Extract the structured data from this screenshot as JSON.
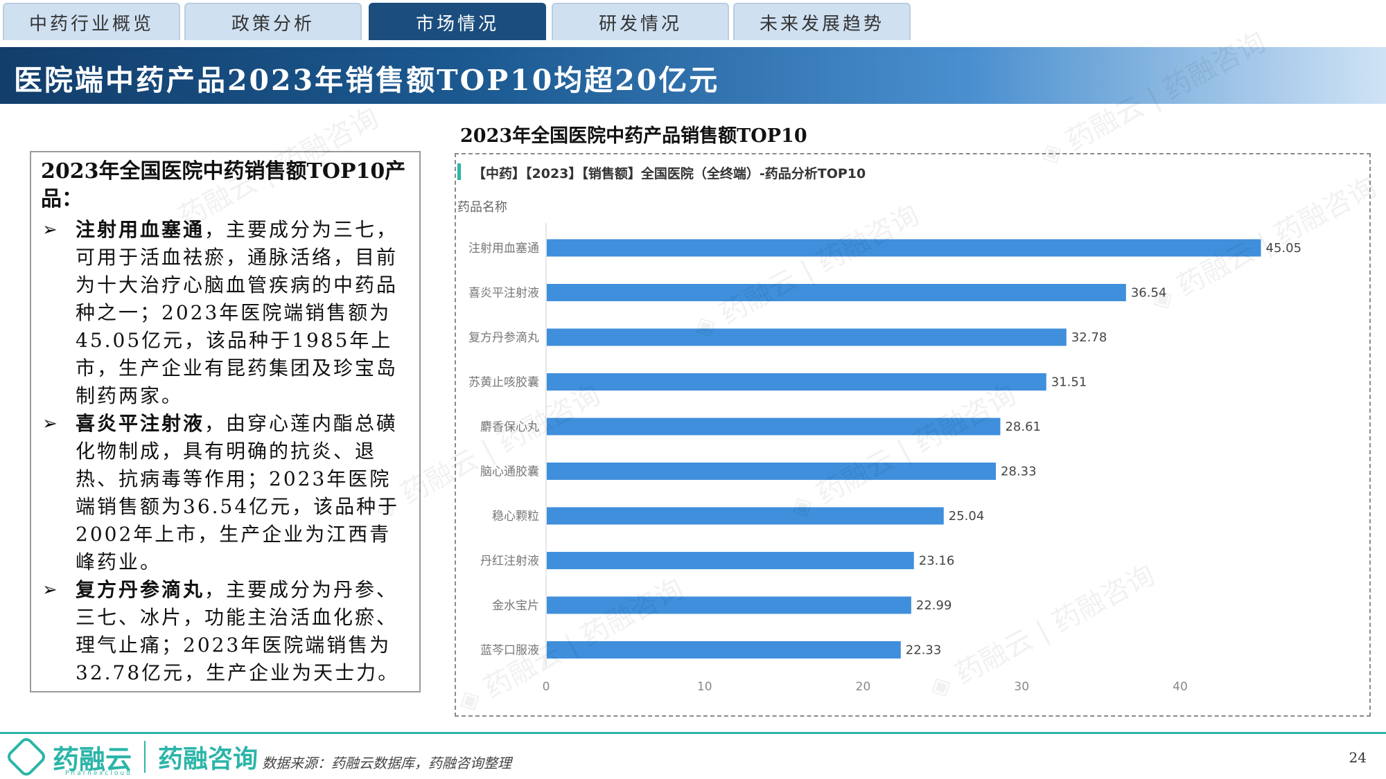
{
  "tabs": [
    {
      "label": "中药行业概览",
      "active": false
    },
    {
      "label": "政策分析",
      "active": false
    },
    {
      "label": "市场情况",
      "active": true
    },
    {
      "label": "研发情况",
      "active": false
    },
    {
      "label": "未来发展趋势",
      "active": false
    }
  ],
  "banner": {
    "title": "医院端中药产品2023年销售额TOP10均超20亿元"
  },
  "left_panel": {
    "title": "2023年全国医院中药销售额TOP10产品：",
    "bullets": [
      {
        "bold": "注射用血塞通",
        "text": "，主要成分为三七，可用于活血祛瘀，通脉活络，目前为十大治疗心脑血管疾病的中药品种之一；2023年医院端销售额为45.05亿元，该品种于1985年上市，生产企业有昆药集团及珍宝岛制药两家。"
      },
      {
        "bold": "喜炎平注射液",
        "text": "，由穿心莲内酯总磺化物制成，具有明确的抗炎、退热、抗病毒等作用；2023年医院端销售额为36.54亿元，该品种于2002年上市，生产企业为江西青峰药业。"
      },
      {
        "bold": "复方丹参滴丸",
        "text": "，主要成分为丹参、三七、冰片，功能主治活血化瘀、理气止痛；2023年医院端销售为32.78亿元，生产企业为天士力。"
      }
    ]
  },
  "chart_heading": "2023年全国医院中药产品销售额TOP10",
  "chart_inner_title": "【中药】【2023】【销售额】全国医院（全终端）-药品分析TOP10",
  "chart_data": {
    "type": "bar",
    "orientation": "horizontal",
    "ylabel": "药品名称",
    "categories": [
      "注射用血塞通",
      "喜炎平注射液",
      "复方丹参滴丸",
      "苏黄止咳胶囊",
      "麝香保心丸",
      "脑心通胶囊",
      "稳心颗粒",
      "丹红注射液",
      "金水宝片",
      "蓝芩口服液"
    ],
    "values": [
      45.05,
      36.54,
      32.78,
      31.51,
      28.61,
      28.33,
      25.04,
      23.16,
      22.99,
      22.33
    ],
    "value_labels": [
      "45.05",
      "36.54",
      "32.78",
      "31.51",
      "28.61",
      "28.33",
      "25.04",
      "23.16",
      "22.99",
      "22.33"
    ],
    "xlim": [
      0,
      48
    ],
    "xticks": [
      0,
      10,
      20,
      30,
      40
    ],
    "bar_color": "#3f8fdc",
    "grid": false
  },
  "footer": {
    "logo_name": "药融云",
    "logo_sub": "Pharnexcloud",
    "logo_name2": "药融咨询",
    "source": "数据来源：药融云数据库，药融咨询整理",
    "page": "24"
  },
  "colors": {
    "accent": "#2bb5a8",
    "banner_dark": "#123e6b",
    "tab_active": "#1b4e7e",
    "tab_bg": "#cfe0f1"
  }
}
